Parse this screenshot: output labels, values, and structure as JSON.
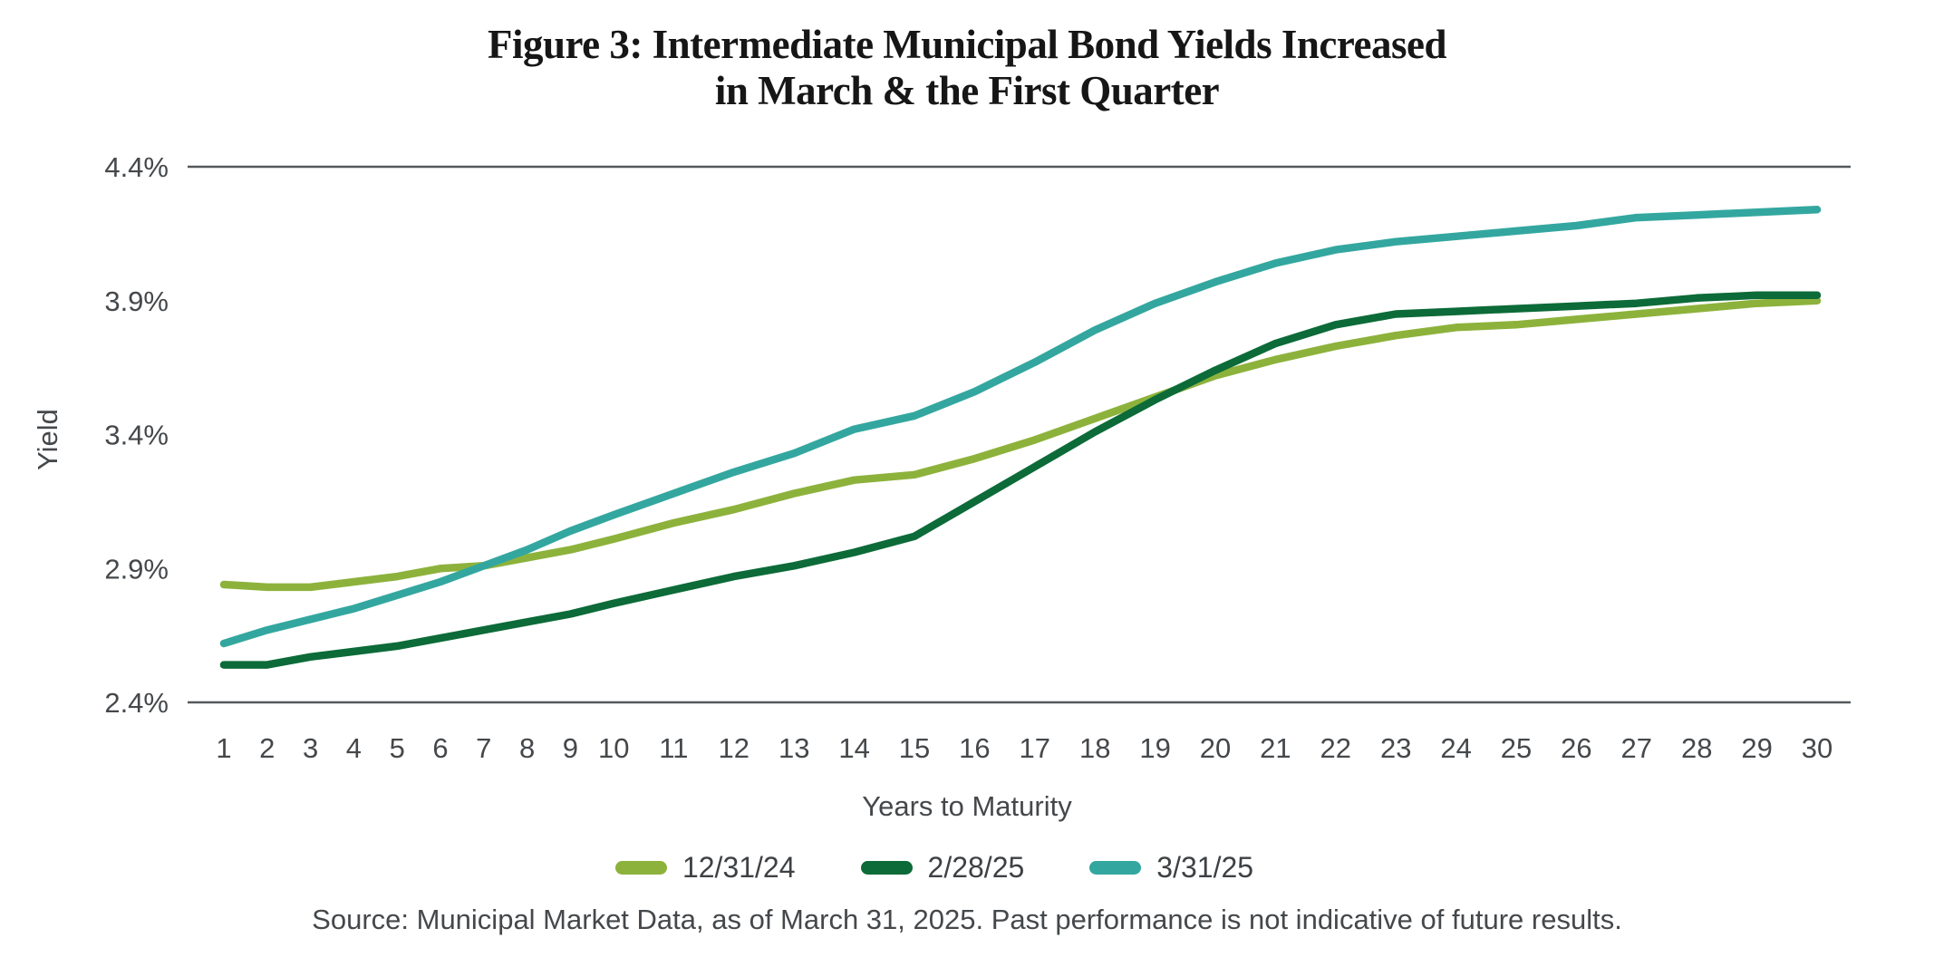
{
  "figure": {
    "title_line1": "Figure 3: Intermediate Municipal Bond Yields Increased",
    "title_line2": "in March & the First Quarter",
    "source": "Source: Municipal Market Data, as of March 31, 2025. Past performance is not indicative of future results."
  },
  "legend": {
    "position": "bottom-center",
    "items": [
      {
        "label": "12/31/24",
        "color": "#8DB23C"
      },
      {
        "label": "2/28/25",
        "color": "#0C6B38"
      },
      {
        "label": "3/31/25",
        "color": "#33A79F"
      }
    ]
  },
  "chart_data": {
    "type": "line",
    "title": "Figure 3: Intermediate Municipal Bond Yields Increased in March & the First Quarter",
    "xlabel": "Years to Maturity",
    "ylabel": "Yield",
    "ylim": [
      2.4,
      4.4
    ],
    "grid": "horizontal lines at top (4.4%) and bottom (2.4%) only",
    "gridline_values": [
      4.4,
      2.4
    ],
    "y_ticks": [
      {
        "label": "4.4%",
        "value": 4.4
      },
      {
        "label": "3.9%",
        "value": 3.9
      },
      {
        "label": "3.4%",
        "value": 3.4
      },
      {
        "label": "2.9%",
        "value": 2.9
      },
      {
        "label": "2.4%",
        "value": 2.4
      }
    ],
    "x": [
      1,
      2,
      3,
      4,
      5,
      6,
      7,
      8,
      9,
      10,
      11,
      12,
      13,
      14,
      15,
      16,
      17,
      18,
      19,
      20,
      21,
      22,
      23,
      24,
      25,
      26,
      27,
      28,
      29,
      30
    ],
    "axis_color": "#55585B",
    "text_color": "#45484B",
    "series": [
      {
        "name": "12/31/24",
        "color": "#8DB23C",
        "values": [
          2.84,
          2.83,
          2.83,
          2.85,
          2.87,
          2.9,
          2.91,
          2.94,
          2.97,
          3.01,
          3.07,
          3.12,
          3.18,
          3.23,
          3.25,
          3.31,
          3.38,
          3.46,
          3.54,
          3.62,
          3.68,
          3.73,
          3.77,
          3.8,
          3.81,
          3.83,
          3.85,
          3.87,
          3.89,
          3.9
        ]
      },
      {
        "name": "2/28/25",
        "color": "#0C6B38",
        "values": [
          2.54,
          2.54,
          2.57,
          2.59,
          2.61,
          2.64,
          2.67,
          2.7,
          2.73,
          2.77,
          2.82,
          2.87,
          2.91,
          2.96,
          3.02,
          3.15,
          3.28,
          3.41,
          3.53,
          3.64,
          3.74,
          3.81,
          3.85,
          3.86,
          3.87,
          3.88,
          3.89,
          3.91,
          3.92,
          3.92
        ]
      },
      {
        "name": "3/31/25",
        "color": "#33A79F",
        "values": [
          2.62,
          2.67,
          2.71,
          2.75,
          2.8,
          2.85,
          2.91,
          2.97,
          3.04,
          3.1,
          3.18,
          3.26,
          3.33,
          3.42,
          3.47,
          3.56,
          3.67,
          3.79,
          3.89,
          3.97,
          4.04,
          4.09,
          4.12,
          4.14,
          4.16,
          4.18,
          4.21,
          4.22,
          4.23,
          4.24
        ]
      }
    ]
  }
}
